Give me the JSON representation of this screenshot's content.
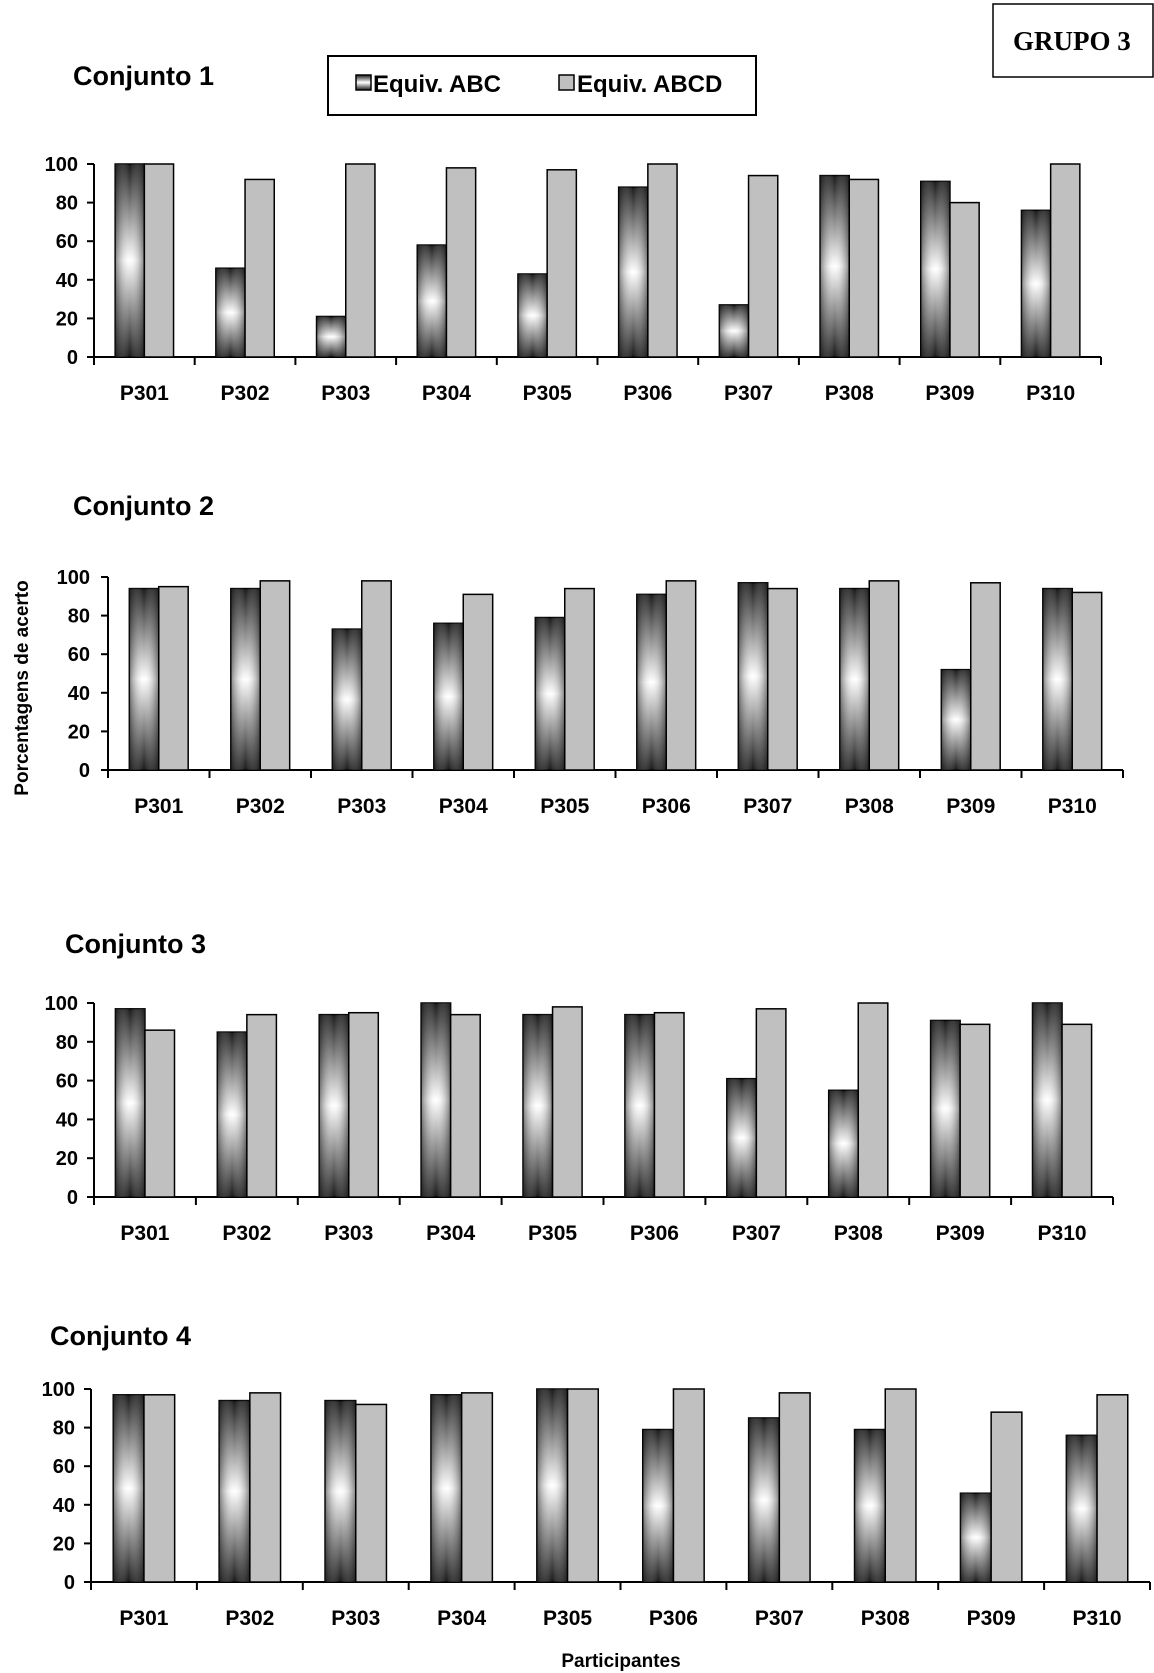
{
  "group_label": "GRUPO 3",
  "legend": {
    "abc": "Equiv. ABC",
    "abcd": "Equiv. ABCD"
  },
  "y_axis_label": "Porcentagens de acerto",
  "x_axis_label": "Participantes",
  "colors": {
    "abc_dark": "#1a1a1a",
    "abc_light": "#ffffff",
    "abcd": "#c0c0c0",
    "axis": "#000000"
  },
  "chart_data": [
    {
      "type": "bar",
      "title": "Conjunto 1",
      "categories": [
        "P301",
        "P302",
        "P303",
        "P304",
        "P305",
        "P306",
        "P307",
        "P308",
        "P309",
        "P310"
      ],
      "ylim": [
        0,
        100
      ],
      "yticks": [
        0,
        20,
        40,
        60,
        80,
        100
      ],
      "series": [
        {
          "name": "Equiv. ABC",
          "values": [
            100,
            46,
            21,
            58,
            43,
            88,
            27,
            94,
            91,
            76
          ]
        },
        {
          "name": "Equiv. ABCD",
          "values": [
            100,
            92,
            100,
            98,
            97,
            100,
            94,
            92,
            80,
            100
          ]
        }
      ]
    },
    {
      "type": "bar",
      "title": "Conjunto 2",
      "categories": [
        "P301",
        "P302",
        "P303",
        "P304",
        "P305",
        "P306",
        "P307",
        "P308",
        "P309",
        "P310"
      ],
      "ylim": [
        0,
        100
      ],
      "yticks": [
        0,
        20,
        40,
        60,
        80,
        100
      ],
      "series": [
        {
          "name": "Equiv. ABC",
          "values": [
            94,
            94,
            73,
            76,
            79,
            91,
            97,
            94,
            52,
            94
          ]
        },
        {
          "name": "Equiv. ABCD",
          "values": [
            95,
            98,
            98,
            91,
            94,
            98,
            94,
            98,
            97,
            92
          ]
        }
      ]
    },
    {
      "type": "bar",
      "title": "Conjunto 3",
      "categories": [
        "P301",
        "P302",
        "P303",
        "P304",
        "P305",
        "P306",
        "P307",
        "P308",
        "P309",
        "P310"
      ],
      "ylim": [
        0,
        100
      ],
      "yticks": [
        0,
        20,
        40,
        60,
        80,
        100
      ],
      "series": [
        {
          "name": "Equiv. ABC",
          "values": [
            97,
            85,
            94,
            100,
            94,
            94,
            61,
            55,
            91,
            100
          ]
        },
        {
          "name": "Equiv. ABCD",
          "values": [
            86,
            94,
            95,
            94,
            98,
            95,
            97,
            100,
            89,
            89
          ]
        }
      ]
    },
    {
      "type": "bar",
      "title": "Conjunto 4",
      "categories": [
        "P301",
        "P302",
        "P303",
        "P304",
        "P305",
        "P306",
        "P307",
        "P308",
        "P309",
        "P310"
      ],
      "ylim": [
        0,
        100
      ],
      "yticks": [
        0,
        20,
        40,
        60,
        80,
        100
      ],
      "series": [
        {
          "name": "Equiv. ABC",
          "values": [
            97,
            94,
            94,
            97,
            100,
            79,
            85,
            79,
            46,
            76
          ]
        },
        {
          "name": "Equiv. ABCD",
          "values": [
            97,
            98,
            92,
            98,
            100,
            100,
            98,
            100,
            88,
            97
          ]
        }
      ]
    }
  ]
}
